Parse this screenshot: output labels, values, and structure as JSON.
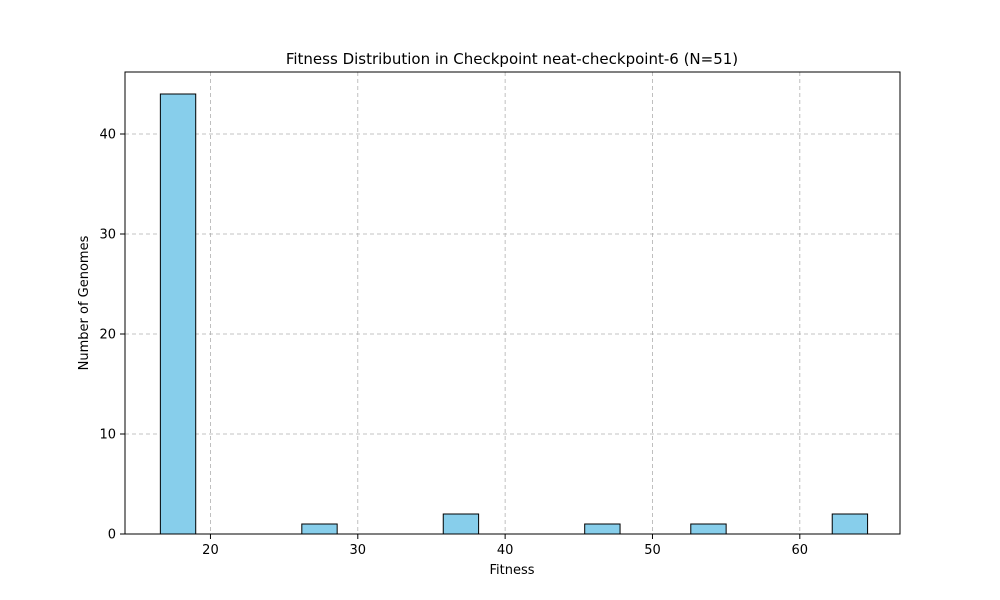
{
  "chart_data": {
    "type": "bar",
    "title": "Fitness Distribution in Checkpoint neat-checkpoint-6 (N=51)",
    "xlabel": "Fitness",
    "ylabel": "Number of Genomes",
    "xlim": [
      14.2,
      66.8
    ],
    "ylim": [
      0,
      46.2
    ],
    "xticks": [
      20,
      30,
      40,
      50,
      60
    ],
    "yticks": [
      0,
      10,
      20,
      30,
      40
    ],
    "grid": true,
    "bar_color": "#87CEEB",
    "edge_color": "#000000",
    "bins": [
      {
        "start": 16.6,
        "end": 19.0,
        "count": 44
      },
      {
        "start": 19.0,
        "end": 21.4,
        "count": 0
      },
      {
        "start": 21.4,
        "end": 23.8,
        "count": 0
      },
      {
        "start": 23.8,
        "end": 26.2,
        "count": 0
      },
      {
        "start": 26.2,
        "end": 28.6,
        "count": 1
      },
      {
        "start": 28.6,
        "end": 31.0,
        "count": 0
      },
      {
        "start": 31.0,
        "end": 33.4,
        "count": 0
      },
      {
        "start": 33.4,
        "end": 35.8,
        "count": 0
      },
      {
        "start": 35.8,
        "end": 38.2,
        "count": 2
      },
      {
        "start": 38.2,
        "end": 40.6,
        "count": 0
      },
      {
        "start": 40.6,
        "end": 43.0,
        "count": 0
      },
      {
        "start": 43.0,
        "end": 45.4,
        "count": 0
      },
      {
        "start": 45.4,
        "end": 47.8,
        "count": 1
      },
      {
        "start": 47.8,
        "end": 50.2,
        "count": 0
      },
      {
        "start": 50.2,
        "end": 52.6,
        "count": 0
      },
      {
        "start": 52.6,
        "end": 55.0,
        "count": 1
      },
      {
        "start": 55.0,
        "end": 57.4,
        "count": 0
      },
      {
        "start": 57.4,
        "end": 59.8,
        "count": 0
      },
      {
        "start": 59.8,
        "end": 62.2,
        "count": 0
      },
      {
        "start": 62.2,
        "end": 64.6,
        "count": 2
      }
    ]
  }
}
